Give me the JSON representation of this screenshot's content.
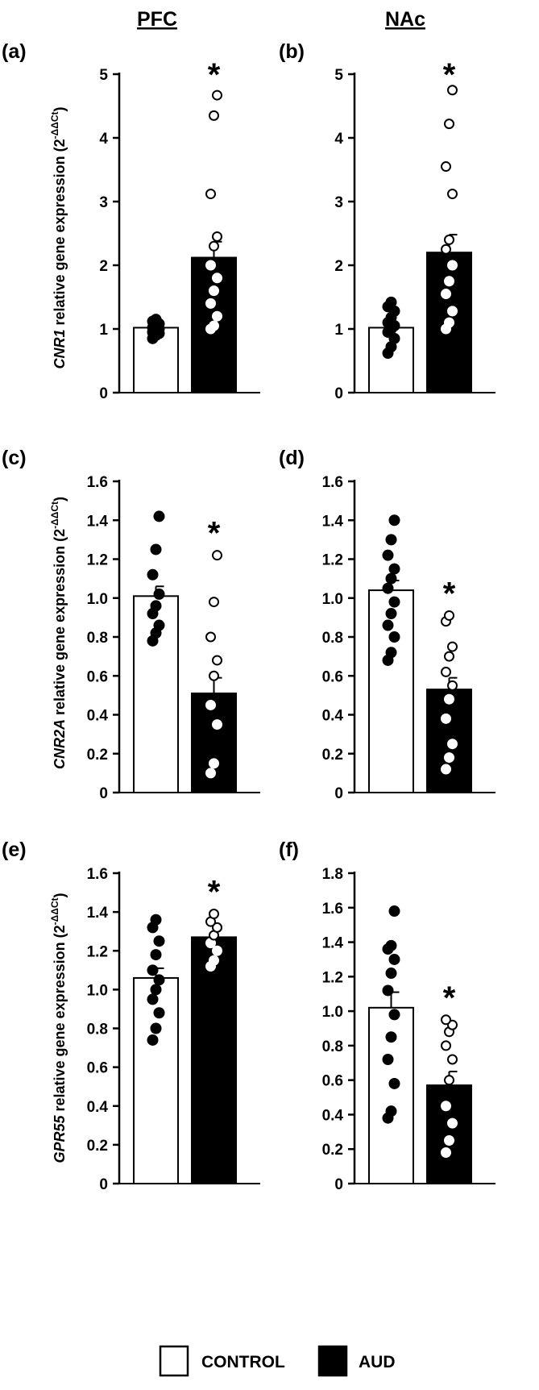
{
  "columns": {
    "left": "PFC",
    "right": "NAc"
  },
  "legend": {
    "control": "CONTROL",
    "aud": "AUD"
  },
  "y_labels": {
    "row1": {
      "gene": "CNR1",
      "text": " relative gene expression (2",
      "sup": "-ΔΔCt",
      "close": ")"
    },
    "row2": {
      "gene": "CNR2A",
      "text": " relative gene expression (2",
      "sup": "-ΔΔCt",
      "close": ")"
    },
    "row3": {
      "gene": "GPR55",
      "text": " relative gene expression (2",
      "sup": "-ΔΔCt",
      "close": ")"
    }
  },
  "colors": {
    "control_fill": "#ffffff",
    "aud_fill": "#000000",
    "axis": "#000000"
  },
  "chart_data": [
    {
      "panel": "(a)",
      "type": "bar",
      "region": "PFC",
      "gene": "CNR1",
      "categories": [
        "CONTROL",
        "AUD"
      ],
      "ylim": [
        0,
        5
      ],
      "ticks": [
        "0",
        "1",
        "2",
        "3",
        "4",
        "5"
      ],
      "series": [
        {
          "name": "CONTROL",
          "mean": 1.02,
          "sem": 0.04,
          "points": [
            0.85,
            0.9,
            0.93,
            0.95,
            0.98,
            1.0,
            1.02,
            1.05,
            1.08,
            1.12,
            1.15
          ]
        },
        {
          "name": "AUD",
          "mean": 2.12,
          "sem": 0.25,
          "points": [
            1.0,
            1.05,
            1.2,
            1.4,
            1.6,
            1.8,
            2.0,
            2.3,
            2.45,
            3.12,
            4.35,
            4.67
          ]
        }
      ],
      "significant": "*"
    },
    {
      "panel": "(b)",
      "type": "bar",
      "region": "NAc",
      "gene": "CNR1",
      "categories": [
        "CONTROL",
        "AUD"
      ],
      "ylim": [
        0,
        5
      ],
      "ticks": [
        "0",
        "1",
        "2",
        "3",
        "4",
        "5"
      ],
      "series": [
        {
          "name": "CONTROL",
          "mean": 1.02,
          "sem": 0.07,
          "points": [
            0.62,
            0.72,
            0.85,
            0.95,
            1.0,
            1.05,
            1.1,
            1.18,
            1.28,
            1.35,
            1.42
          ]
        },
        {
          "name": "AUD",
          "mean": 2.2,
          "sem": 0.28,
          "points": [
            1.0,
            1.1,
            1.28,
            1.55,
            1.75,
            2.0,
            2.25,
            2.4,
            3.12,
            3.55,
            4.22,
            4.75
          ]
        }
      ],
      "significant": "*"
    },
    {
      "panel": "(c)",
      "type": "bar",
      "region": "PFC",
      "gene": "CNR2A",
      "categories": [
        "CONTROL",
        "AUD"
      ],
      "ylim": [
        0,
        1.6
      ],
      "ticks": [
        "0",
        "0.2",
        "0.4",
        "0.6",
        "0.8",
        "1.0",
        "1.2",
        "1.4",
        "1.6"
      ],
      "series": [
        {
          "name": "CONTROL",
          "mean": 1.01,
          "sem": 0.05,
          "points": [
            0.78,
            0.82,
            0.86,
            0.92,
            0.96,
            1.02,
            1.12,
            1.25,
            1.42
          ]
        },
        {
          "name": "AUD",
          "mean": 0.51,
          "sem": 0.08,
          "points": [
            0.1,
            0.15,
            0.35,
            0.45,
            0.6,
            0.68,
            0.8,
            0.98,
            1.22
          ]
        }
      ],
      "significant": "*"
    },
    {
      "panel": "(d)",
      "type": "bar",
      "region": "NAc",
      "gene": "CNR2A",
      "categories": [
        "CONTROL",
        "AUD"
      ],
      "ylim": [
        0,
        1.6
      ],
      "ticks": [
        "0",
        "0.2",
        "0.4",
        "0.6",
        "0.8",
        "1.0",
        "1.2",
        "1.4",
        "1.6"
      ],
      "series": [
        {
          "name": "CONTROL",
          "mean": 1.04,
          "sem": 0.05,
          "points": [
            0.68,
            0.72,
            0.8,
            0.86,
            0.92,
            0.98,
            1.05,
            1.1,
            1.15,
            1.22,
            1.3,
            1.4
          ]
        },
        {
          "name": "AUD",
          "mean": 0.53,
          "sem": 0.06,
          "points": [
            0.12,
            0.18,
            0.25,
            0.38,
            0.48,
            0.55,
            0.62,
            0.7,
            0.75,
            0.88,
            0.91
          ]
        }
      ],
      "significant": "*"
    },
    {
      "panel": "(e)",
      "type": "bar",
      "region": "PFC",
      "gene": "GPR55",
      "categories": [
        "CONTROL",
        "AUD"
      ],
      "ylim": [
        0,
        1.6
      ],
      "ticks": [
        "0",
        "0.2",
        "0.4",
        "0.6",
        "0.8",
        "1.0",
        "1.2",
        "1.4",
        "1.6"
      ],
      "series": [
        {
          "name": "CONTROL",
          "mean": 1.06,
          "sem": 0.05,
          "points": [
            0.74,
            0.8,
            0.88,
            0.95,
            1.0,
            1.05,
            1.1,
            1.18,
            1.25,
            1.32,
            1.36
          ]
        },
        {
          "name": "AUD",
          "mean": 1.27,
          "sem": 0.04,
          "points": [
            1.12,
            1.15,
            1.2,
            1.24,
            1.28,
            1.32,
            1.35,
            1.39
          ]
        }
      ],
      "significant": "*"
    },
    {
      "panel": "(f)",
      "type": "bar",
      "region": "NAc",
      "gene": "GPR55",
      "categories": [
        "CONTROL",
        "AUD"
      ],
      "ylim": [
        0,
        1.8
      ],
      "ticks": [
        "0",
        "0.2",
        "0.4",
        "0.6",
        "0.8",
        "1.0",
        "1.2",
        "1.4",
        "1.6",
        "1.8"
      ],
      "series": [
        {
          "name": "CONTROL",
          "mean": 1.02,
          "sem": 0.09,
          "points": [
            0.38,
            0.42,
            0.58,
            0.72,
            0.85,
            0.98,
            1.12,
            1.22,
            1.3,
            1.36,
            1.38,
            1.58
          ]
        },
        {
          "name": "AUD",
          "mean": 0.57,
          "sem": 0.08,
          "points": [
            0.18,
            0.25,
            0.35,
            0.45,
            0.6,
            0.72,
            0.8,
            0.88,
            0.92,
            0.95
          ]
        }
      ],
      "significant": "*"
    }
  ]
}
